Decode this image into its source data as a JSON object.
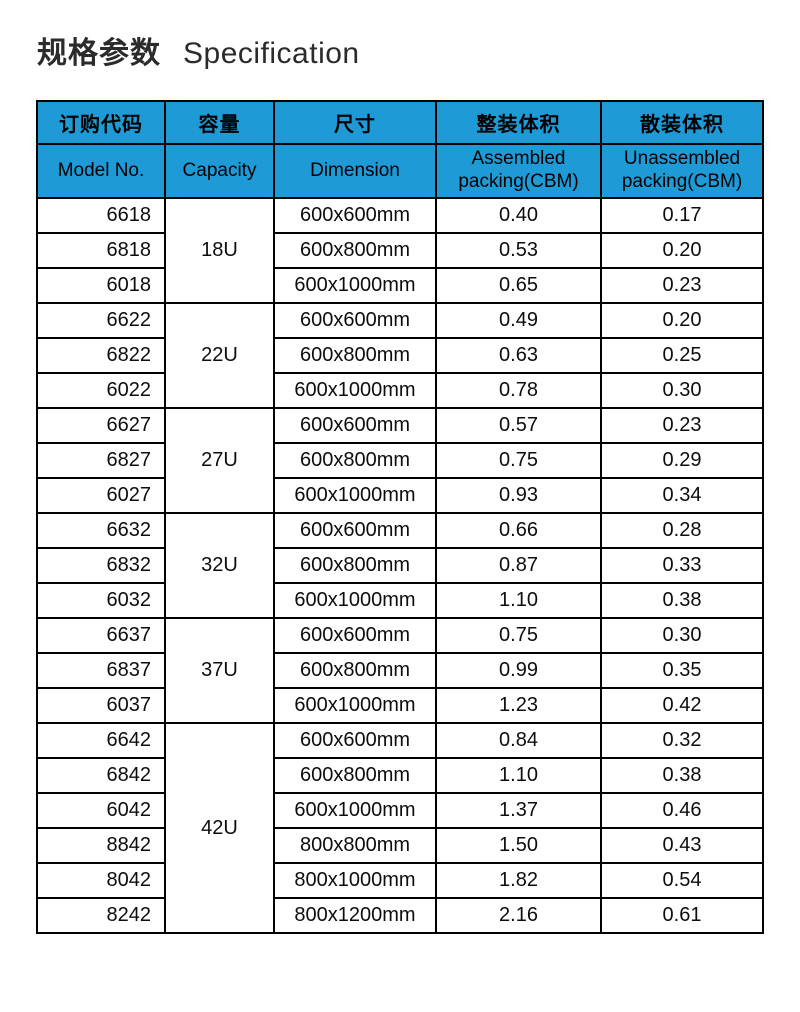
{
  "title": {
    "zh": "规格参数",
    "en": "Specification"
  },
  "colors": {
    "header_bg": "#1E9AD6",
    "border": "#000000",
    "text": "#111111",
    "page_bg": "#FFFFFF"
  },
  "table": {
    "headers": [
      {
        "zh": "订购代码",
        "en": "Model No."
      },
      {
        "zh": "容量",
        "en": "Capacity"
      },
      {
        "zh": "尺寸",
        "en": "Dimension"
      },
      {
        "zh": "整装体积",
        "en": "Assembled packing(CBM)"
      },
      {
        "zh": "散装体积",
        "en": "Unassembled packing(CBM)"
      }
    ],
    "groups": [
      {
        "capacity": "18U",
        "rows": [
          {
            "model": "6618",
            "dimension": "600x600mm",
            "assembled": "0.40",
            "unassembled": "0.17"
          },
          {
            "model": "6818",
            "dimension": "600x800mm",
            "assembled": "0.53",
            "unassembled": "0.20"
          },
          {
            "model": "6018",
            "dimension": "600x1000mm",
            "assembled": "0.65",
            "unassembled": "0.23"
          }
        ]
      },
      {
        "capacity": "22U",
        "rows": [
          {
            "model": "6622",
            "dimension": "600x600mm",
            "assembled": "0.49",
            "unassembled": "0.20"
          },
          {
            "model": "6822",
            "dimension": "600x800mm",
            "assembled": "0.63",
            "unassembled": "0.25"
          },
          {
            "model": "6022",
            "dimension": "600x1000mm",
            "assembled": "0.78",
            "unassembled": "0.30"
          }
        ]
      },
      {
        "capacity": "27U",
        "rows": [
          {
            "model": "6627",
            "dimension": "600x600mm",
            "assembled": "0.57",
            "unassembled": "0.23"
          },
          {
            "model": "6827",
            "dimension": "600x800mm",
            "assembled": "0.75",
            "unassembled": "0.29"
          },
          {
            "model": "6027",
            "dimension": "600x1000mm",
            "assembled": "0.93",
            "unassembled": "0.34"
          }
        ]
      },
      {
        "capacity": "32U",
        "rows": [
          {
            "model": "6632",
            "dimension": "600x600mm",
            "assembled": "0.66",
            "unassembled": "0.28"
          },
          {
            "model": "6832",
            "dimension": "600x800mm",
            "assembled": "0.87",
            "unassembled": "0.33"
          },
          {
            "model": "6032",
            "dimension": "600x1000mm",
            "assembled": "1.10",
            "unassembled": "0.38"
          }
        ]
      },
      {
        "capacity": "37U",
        "rows": [
          {
            "model": "6637",
            "dimension": "600x600mm",
            "assembled": "0.75",
            "unassembled": "0.30"
          },
          {
            "model": "6837",
            "dimension": "600x800mm",
            "assembled": "0.99",
            "unassembled": "0.35"
          },
          {
            "model": "6037",
            "dimension": "600x1000mm",
            "assembled": "1.23",
            "unassembled": "0.42"
          }
        ]
      },
      {
        "capacity": "42U",
        "rows": [
          {
            "model": "6642",
            "dimension": "600x600mm",
            "assembled": "0.84",
            "unassembled": "0.32"
          },
          {
            "model": "6842",
            "dimension": "600x800mm",
            "assembled": "1.10",
            "unassembled": "0.38"
          },
          {
            "model": "6042",
            "dimension": "600x1000mm",
            "assembled": "1.37",
            "unassembled": "0.46"
          },
          {
            "model": "8842",
            "dimension": "800x800mm",
            "assembled": "1.50",
            "unassembled": "0.43"
          },
          {
            "model": "8042",
            "dimension": "800x1000mm",
            "assembled": "1.82",
            "unassembled": "0.54"
          },
          {
            "model": "8242",
            "dimension": "800x1200mm",
            "assembled": "2.16",
            "unassembled": "0.61"
          }
        ]
      }
    ]
  }
}
